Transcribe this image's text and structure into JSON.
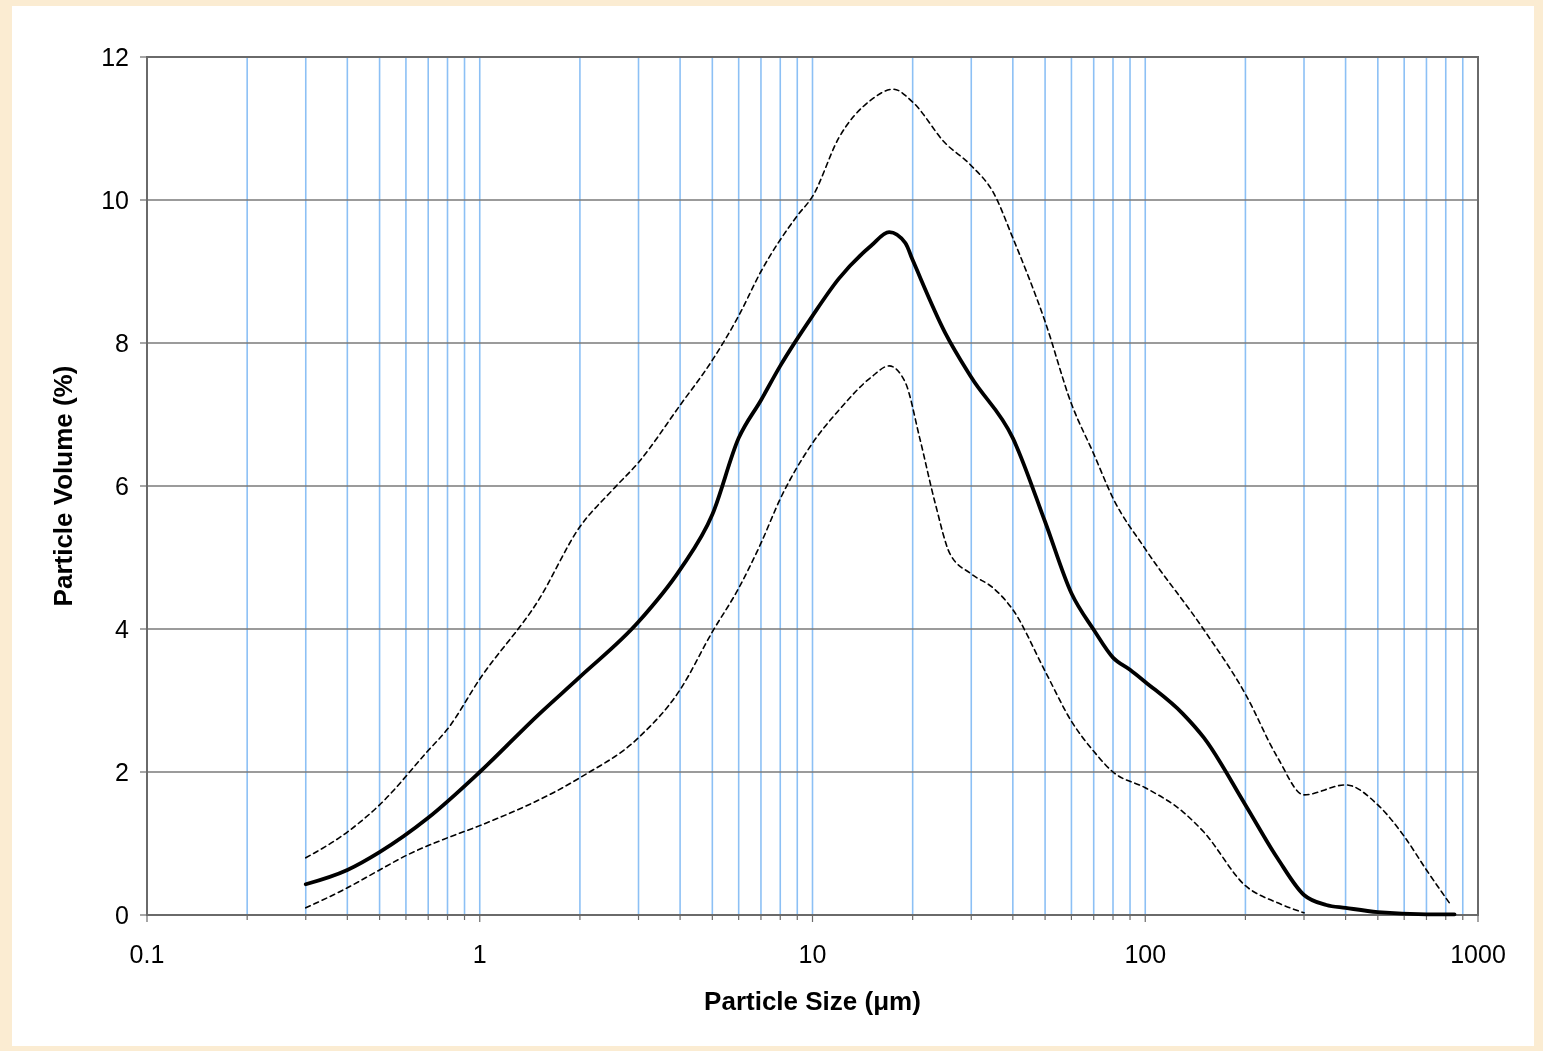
{
  "chart_data": {
    "type": "line",
    "xlabel": "Particle Size (μm)",
    "ylabel": "Particle Volume (%)",
    "log": "x",
    "xlim": [
      0.1,
      1000
    ],
    "ylim": [
      0,
      12
    ],
    "xticks": [
      0.1,
      {
        "value": 0.2,
        "label": null
      },
      {
        "value": 0.3,
        "label": null
      },
      {
        "value": 0.4,
        "label": null
      },
      {
        "value": 0.5,
        "label": null
      },
      {
        "value": 0.6,
        "label": null
      },
      {
        "value": 0.7,
        "label": null
      },
      {
        "value": 0.8,
        "label": null
      },
      {
        "value": 0.9,
        "label": null
      },
      1,
      {
        "value": 2,
        "label": null
      },
      {
        "value": 3,
        "label": null
      },
      {
        "value": 4,
        "label": null
      },
      {
        "value": 5,
        "label": null
      },
      {
        "value": 6,
        "label": null
      },
      {
        "value": 7,
        "label": null
      },
      {
        "value": 8,
        "label": null
      },
      {
        "value": 9,
        "label": null
      },
      10,
      {
        "value": 20,
        "label": null
      },
      {
        "value": 30,
        "label": null
      },
      {
        "value": 40,
        "label": null
      },
      {
        "value": 50,
        "label": null
      },
      {
        "value": 60,
        "label": null
      },
      {
        "value": 70,
        "label": null
      },
      {
        "value": 80,
        "label": null
      },
      {
        "value": 90,
        "label": null
      },
      100,
      {
        "value": 200,
        "label": null
      },
      {
        "value": 300,
        "label": null
      },
      {
        "value": 400,
        "label": null
      },
      {
        "value": 500,
        "label": null
      },
      {
        "value": 600,
        "label": null
      },
      {
        "value": 700,
        "label": null
      },
      {
        "value": 800,
        "label": null
      },
      {
        "value": 900,
        "label": null
      },
      1000
    ],
    "yticks": [
      0,
      2,
      4,
      6,
      8,
      10,
      12
    ],
    "grid": true,
    "marker": "none",
    "series": [
      {
        "color": "#000000",
        "line_style": "dashed",
        "x": [
          0.3,
          0.4,
          0.5,
          0.7,
          0.8,
          1,
          1.5,
          2,
          2.5,
          3,
          4,
          5,
          6,
          7,
          9,
          10,
          12,
          15,
          17.5,
          20,
          25,
          30,
          35,
          40,
          50,
          60,
          70,
          80,
          100,
          150,
          200,
          250,
          300,
          400,
          500,
          600,
          700,
          820
        ],
        "values": [
          0.8,
          1.16,
          1.54,
          2.3,
          2.6,
          3.3,
          4.4,
          5.43,
          5.94,
          6.33,
          7.13,
          7.76,
          8.38,
          9.0,
          9.78,
          10.05,
          10.87,
          11.4,
          11.55,
          11.37,
          10.8,
          10.48,
          10.1,
          9.47,
          8.3,
          7.15,
          6.45,
          5.83,
          5.12,
          3.99,
          3.09,
          2.2,
          1.68,
          1.82,
          1.54,
          1.1,
          0.63,
          0.17
        ]
      },
      {
        "color": "#000000",
        "line_style": "solid",
        "x": [
          0.3,
          0.4,
          0.5,
          0.7,
          1,
          1.5,
          2,
          3,
          4,
          5,
          6,
          7,
          8,
          10,
          12,
          15,
          17,
          19,
          20,
          25,
          30,
          40,
          50,
          60,
          70,
          80,
          90,
          100,
          130,
          150,
          200,
          250,
          300,
          350,
          400,
          500,
          700,
          850
        ],
        "values": [
          0.43,
          0.63,
          0.88,
          1.36,
          2.0,
          2.8,
          3.33,
          4.1,
          4.83,
          5.6,
          6.67,
          7.2,
          7.68,
          8.38,
          8.9,
          9.36,
          9.55,
          9.4,
          9.16,
          8.15,
          7.52,
          6.67,
          5.5,
          4.5,
          3.99,
          3.6,
          3.43,
          3.26,
          2.81,
          2.48,
          1.54,
          0.79,
          0.28,
          0.14,
          0.1,
          0.04,
          0.01,
          0.01
        ]
      },
      {
        "color": "#000000",
        "line_style": "dashed",
        "x": [
          0.3,
          0.4,
          0.5,
          0.6,
          0.8,
          1,
          2,
          3,
          4,
          5,
          6,
          7,
          8,
          10,
          12,
          15,
          17,
          19,
          21,
          23.4,
          25.9,
          30,
          35,
          40,
          50,
          60,
          70,
          80,
          100,
          130,
          150,
          200,
          250,
          300
        ],
        "values": [
          0.1,
          0.38,
          0.63,
          0.83,
          1.08,
          1.25,
          1.92,
          2.48,
          3.15,
          3.96,
          4.57,
          5.2,
          5.82,
          6.6,
          7.06,
          7.52,
          7.68,
          7.45,
          6.67,
          5.75,
          5.05,
          4.77,
          4.57,
          4.27,
          3.41,
          2.71,
          2.29,
          2.0,
          1.78,
          1.44,
          1.16,
          0.41,
          0.17,
          0.03
        ]
      }
    ]
  }
}
